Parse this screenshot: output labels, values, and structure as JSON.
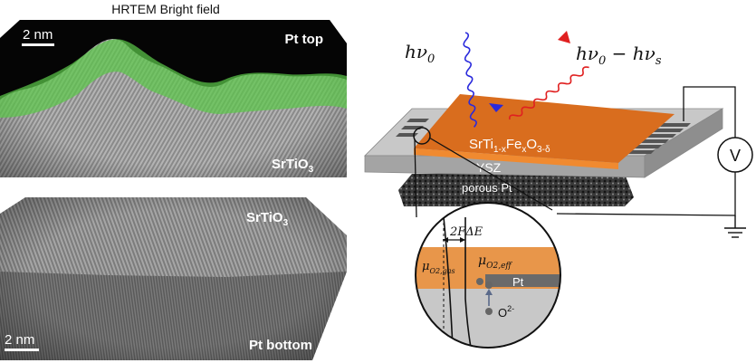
{
  "top_panel": {
    "header": "HRTEM Bright field",
    "scale_bar": "2 nm",
    "top_label": "Pt top",
    "bottom_label_base": "SrTiO",
    "bottom_label_sub": "3"
  },
  "bottom_panel": {
    "top_label_base": "SrTiO",
    "top_label_sub": "3",
    "scale_bar": "2 nm",
    "bottom_label": "Pt bottom"
  },
  "schematic": {
    "incident_photon": "hν",
    "incident_sub": "0",
    "emitted_photon_a": "hν",
    "emitted_sub_a": "0",
    "emitted_minus": " − hν",
    "emitted_sub_b": "s",
    "film_p1": "SrTi",
    "film_s1": "1-x",
    "film_p2": "Fe",
    "film_s2": "x",
    "film_p3": "O",
    "film_s3": "3-δ",
    "substrate": "YSZ",
    "electrode": "porous Pt",
    "voltmeter": "V"
  },
  "inset": {
    "energy_label": "2FΔE",
    "mu_eff": "μ",
    "mu_eff_sub": "O2,eff",
    "mu_gas": "μ",
    "mu_gas_sub": "O2,gas",
    "pt_label": "Pt",
    "ion_label": "O",
    "ion_charge": "2-"
  },
  "colors": {
    "film": "#e07020",
    "film_side": "#f08a30",
    "incident_wave": "#2a2adc",
    "emitted_wave": "#e02020",
    "interface_highlight": "#5cc84a",
    "substrate_top": "#c8c8c8",
    "substrate_side": "#a0a0a0"
  }
}
